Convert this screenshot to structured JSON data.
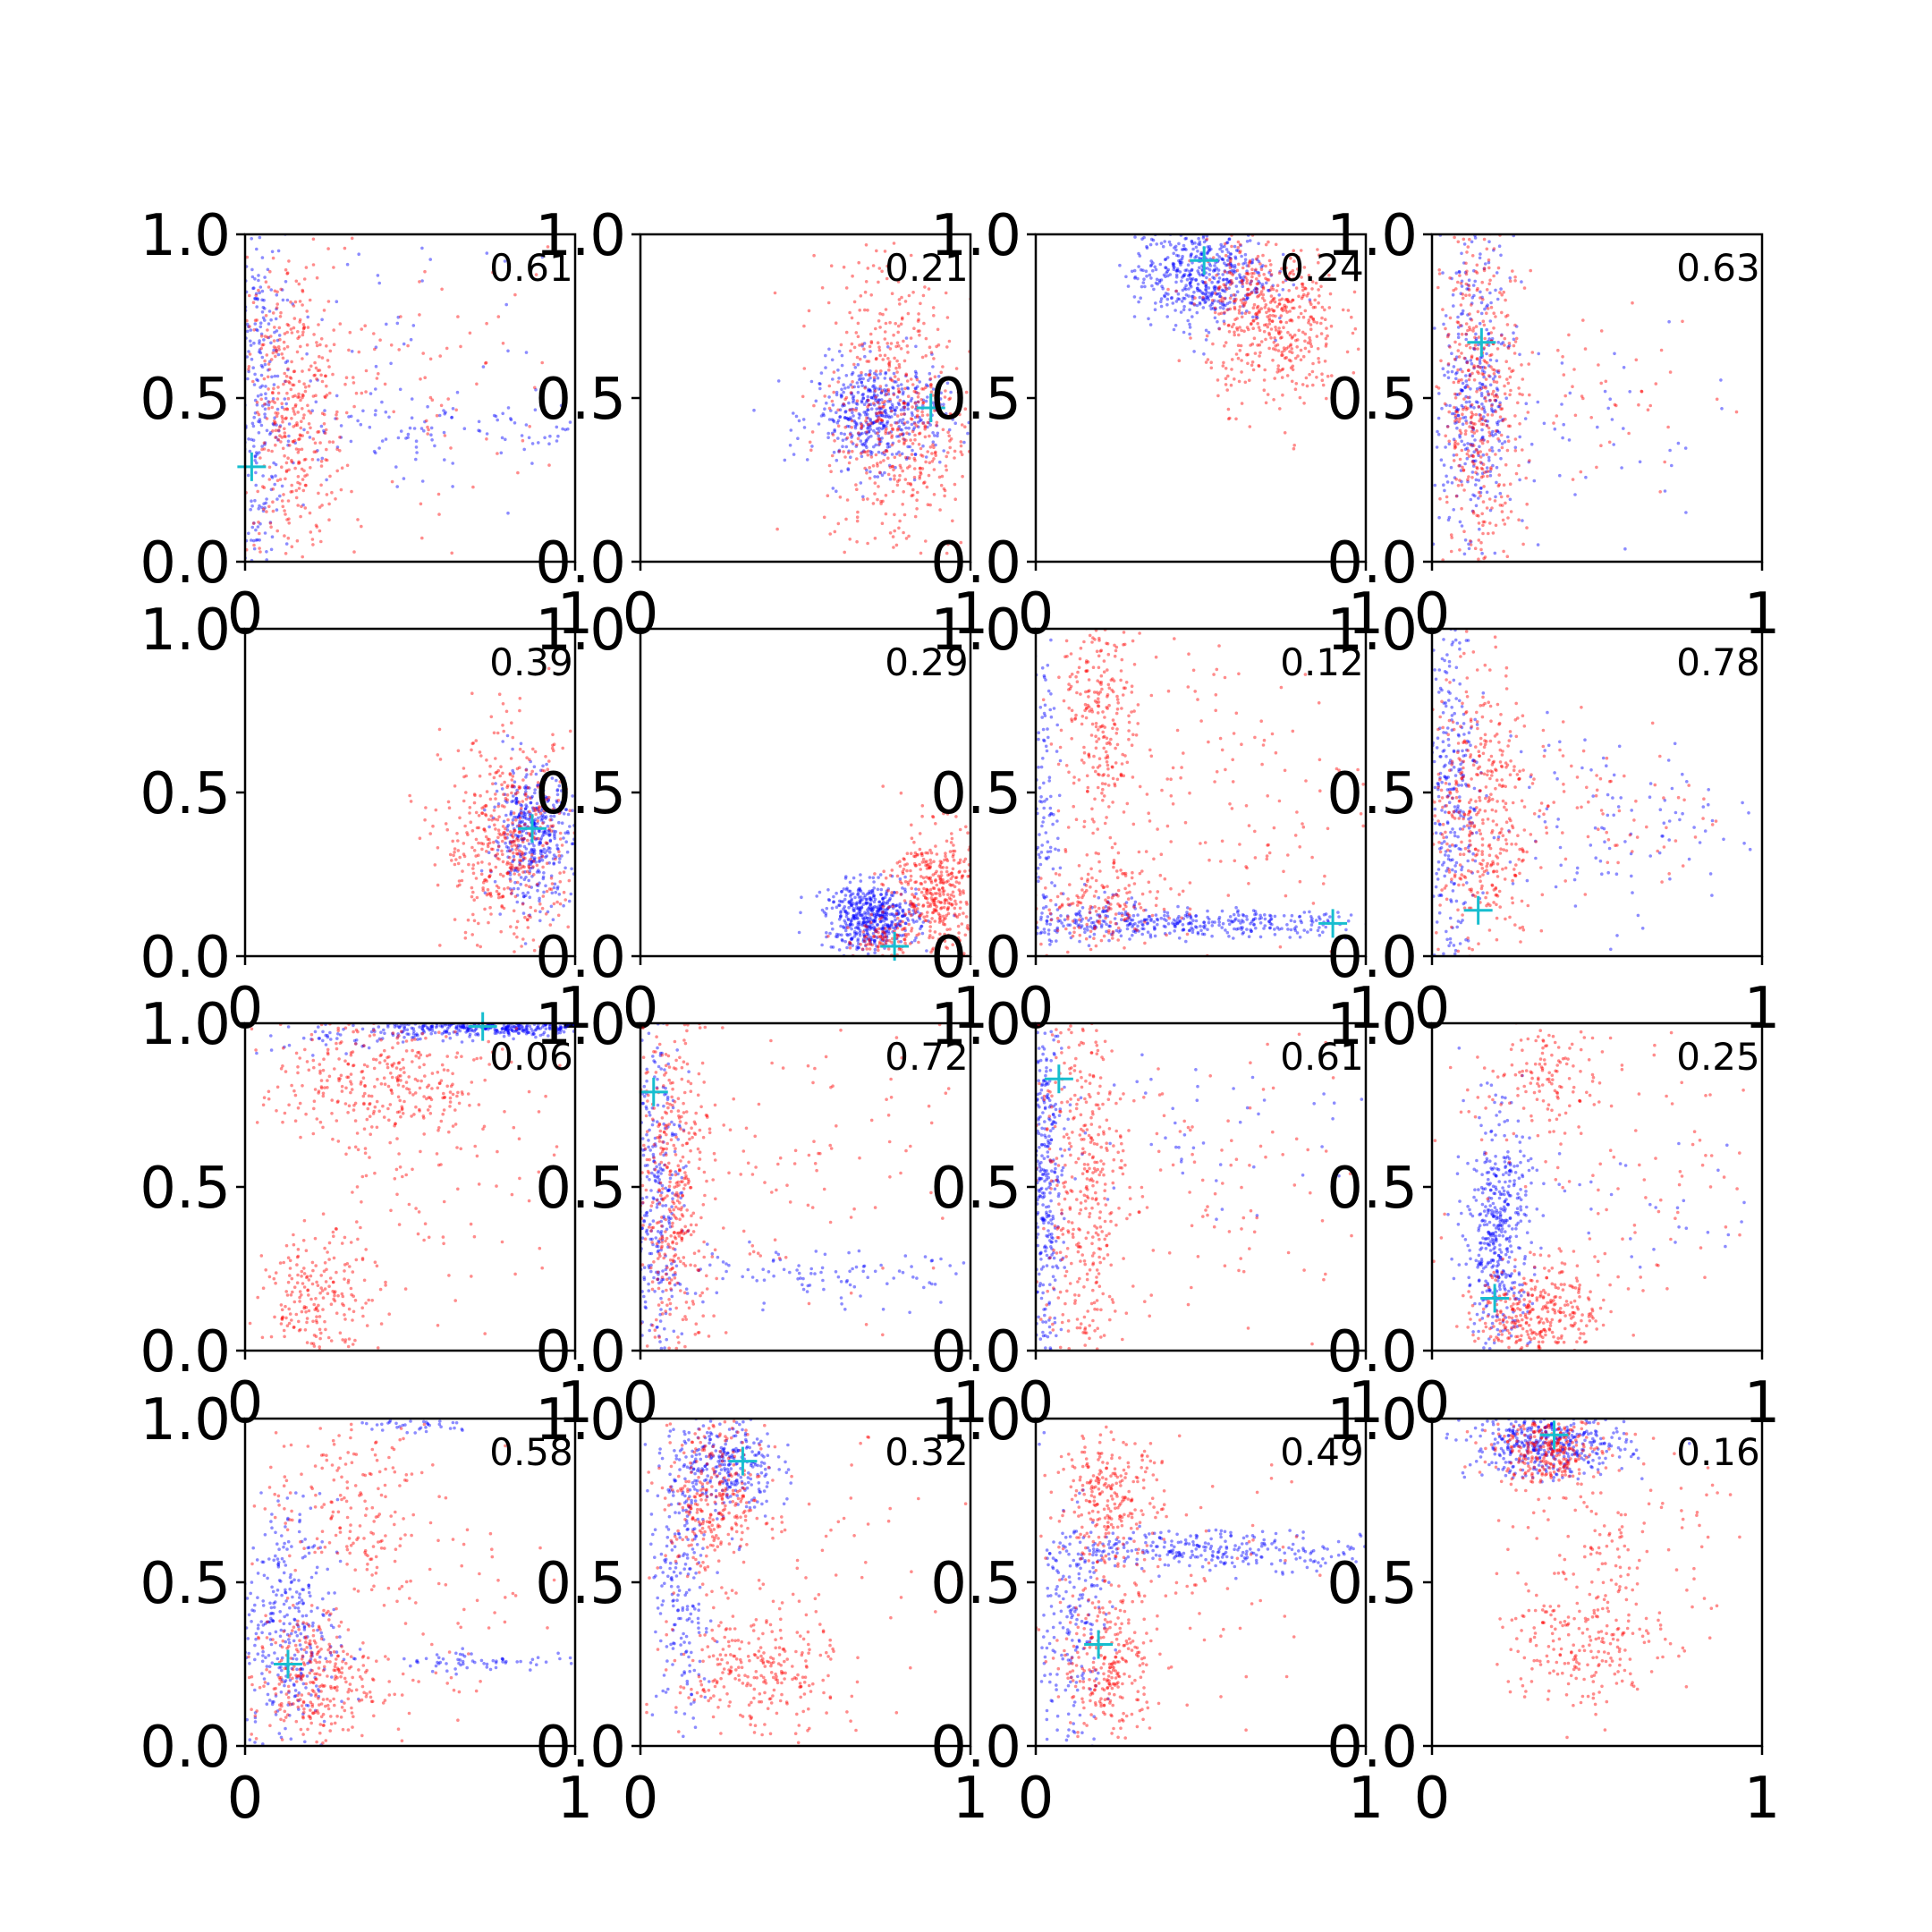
{
  "figure": {
    "colors": {
      "series_a": "#0000ff",
      "series_b": "#ff0000",
      "marker": "#17becf",
      "axis": "#000000"
    },
    "grid": false,
    "rows": 4,
    "cols": 4
  },
  "chart_data": [
    {
      "type": "scatter",
      "annotation": "0.61",
      "xlim": [
        0,
        1
      ],
      "ylim": [
        0,
        1
      ],
      "xticks": [
        "0",
        "1"
      ],
      "yticks": [
        "0.0",
        "0.5",
        "1.0"
      ],
      "marker": {
        "x": 0.02,
        "y": 0.29
      },
      "series": [
        {
          "color": "#0000ff",
          "clusters": [
            {
              "cx": 0.04,
              "cy": 0.5,
              "sx": 0.05,
              "sy": 0.35,
              "n": 320
            },
            {
              "cx": 0.55,
              "cy": 0.4,
              "sx": 0.35,
              "sy": 0.06,
              "n": 110
            },
            {
              "cx": 0.5,
              "cy": 0.6,
              "sx": 0.3,
              "sy": 0.25,
              "n": 60
            }
          ]
        },
        {
          "color": "#ff0000",
          "clusters": [
            {
              "cx": 0.14,
              "cy": 0.45,
              "sx": 0.08,
              "sy": 0.25,
              "n": 420
            },
            {
              "cx": 0.5,
              "cy": 0.55,
              "sx": 0.25,
              "sy": 0.2,
              "n": 90
            }
          ]
        }
      ]
    },
    {
      "type": "scatter",
      "annotation": "0.21",
      "xlim": [
        0,
        1
      ],
      "ylim": [
        0,
        1
      ],
      "xticks": [
        "0",
        "1"
      ],
      "yticks": [
        "0.0",
        "0.5",
        "1.0"
      ],
      "marker": {
        "x": 0.88,
        "y": 0.47
      },
      "series": [
        {
          "color": "#0000ff",
          "clusters": [
            {
              "cx": 0.72,
              "cy": 0.45,
              "sx": 0.1,
              "sy": 0.08,
              "n": 480
            }
          ]
        },
        {
          "color": "#ff0000",
          "clusters": [
            {
              "cx": 0.78,
              "cy": 0.4,
              "sx": 0.11,
              "sy": 0.2,
              "n": 460
            },
            {
              "cx": 0.72,
              "cy": 0.75,
              "sx": 0.08,
              "sy": 0.12,
              "n": 80
            }
          ]
        }
      ]
    },
    {
      "type": "scatter",
      "annotation": "0.24",
      "xlim": [
        0,
        1
      ],
      "ylim": [
        0,
        1
      ],
      "xticks": [
        "0",
        "1"
      ],
      "yticks": [
        "0.0",
        "0.5",
        "1.0"
      ],
      "marker": {
        "x": 0.51,
        "y": 0.92
      },
      "series": [
        {
          "color": "#0000ff",
          "clusters": [
            {
              "cx": 0.5,
              "cy": 0.88,
              "sx": 0.1,
              "sy": 0.08,
              "n": 520
            }
          ]
        },
        {
          "color": "#ff0000",
          "clusters": [
            {
              "cx": 0.72,
              "cy": 0.72,
              "sx": 0.1,
              "sy": 0.12,
              "n": 440
            },
            {
              "cx": 0.62,
              "cy": 0.9,
              "sx": 0.08,
              "sy": 0.06,
              "n": 60
            }
          ]
        }
      ]
    },
    {
      "type": "scatter",
      "annotation": "0.63",
      "xlim": [
        0,
        1
      ],
      "ylim": [
        0,
        1
      ],
      "xticks": [
        "0",
        "1"
      ],
      "yticks": [
        "0.0",
        "0.5",
        "1.0"
      ],
      "marker": {
        "x": 0.15,
        "y": 0.67
      },
      "series": [
        {
          "color": "#0000ff",
          "clusters": [
            {
              "cx": 0.13,
              "cy": 0.5,
              "sx": 0.06,
              "sy": 0.26,
              "n": 380
            },
            {
              "cx": 0.5,
              "cy": 0.4,
              "sx": 0.2,
              "sy": 0.15,
              "n": 40
            }
          ]
        },
        {
          "color": "#ff0000",
          "clusters": [
            {
              "cx": 0.15,
              "cy": 0.5,
              "sx": 0.06,
              "sy": 0.28,
              "n": 440
            },
            {
              "cx": 0.45,
              "cy": 0.5,
              "sx": 0.2,
              "sy": 0.15,
              "n": 60
            }
          ]
        }
      ]
    },
    {
      "type": "scatter",
      "annotation": "0.39",
      "xlim": [
        0,
        1
      ],
      "ylim": [
        0,
        1
      ],
      "xticks": [
        "0",
        "1"
      ],
      "yticks": [
        "0.0",
        "0.5",
        "1.0"
      ],
      "marker": {
        "x": 0.87,
        "y": 0.39
      },
      "series": [
        {
          "color": "#0000ff",
          "clusters": [
            {
              "cx": 0.87,
              "cy": 0.37,
              "sx": 0.06,
              "sy": 0.1,
              "n": 420
            }
          ]
        },
        {
          "color": "#ff0000",
          "clusters": [
            {
              "cx": 0.8,
              "cy": 0.35,
              "sx": 0.1,
              "sy": 0.16,
              "n": 480
            }
          ]
        }
      ]
    },
    {
      "type": "scatter",
      "annotation": "0.29",
      "xlim": [
        0,
        1
      ],
      "ylim": [
        0,
        1
      ],
      "xticks": [
        "0",
        "1"
      ],
      "yticks": [
        "0.0",
        "0.5",
        "1.0"
      ],
      "marker": {
        "x": 0.77,
        "y": 0.03
      },
      "series": [
        {
          "color": "#0000ff",
          "clusters": [
            {
              "cx": 0.7,
              "cy": 0.12,
              "sx": 0.07,
              "sy": 0.05,
              "n": 520
            }
          ]
        },
        {
          "color": "#ff0000",
          "clusters": [
            {
              "cx": 0.9,
              "cy": 0.2,
              "sx": 0.07,
              "sy": 0.1,
              "n": 420
            },
            {
              "cx": 0.72,
              "cy": 0.05,
              "sx": 0.05,
              "sy": 0.03,
              "n": 80
            }
          ]
        }
      ]
    },
    {
      "type": "scatter",
      "annotation": "0.12",
      "xlim": [
        0,
        1
      ],
      "ylim": [
        0,
        1
      ],
      "xticks": [
        "0",
        "1"
      ],
      "yticks": [
        "0.0",
        "0.5",
        "1.0"
      ],
      "marker": {
        "x": 0.9,
        "y": 0.1
      },
      "series": [
        {
          "color": "#0000ff",
          "clusters": [
            {
              "cx": 0.5,
              "cy": 0.1,
              "sx": 0.28,
              "sy": 0.02,
              "n": 320
            },
            {
              "cx": 0.03,
              "cy": 0.45,
              "sx": 0.02,
              "sy": 0.3,
              "n": 120
            },
            {
              "cx": 0.16,
              "cy": 0.12,
              "sx": 0.1,
              "sy": 0.04,
              "n": 100
            }
          ]
        },
        {
          "color": "#ff0000",
          "clusters": [
            {
              "cx": 0.2,
              "cy": 0.75,
              "sx": 0.06,
              "sy": 0.18,
              "n": 260
            },
            {
              "cx": 0.18,
              "cy": 0.15,
              "sx": 0.1,
              "sy": 0.08,
              "n": 180
            },
            {
              "cx": 0.55,
              "cy": 0.5,
              "sx": 0.25,
              "sy": 0.28,
              "n": 160
            }
          ]
        }
      ]
    },
    {
      "type": "scatter",
      "annotation": "0.78",
      "xlim": [
        0,
        1
      ],
      "ylim": [
        0,
        1
      ],
      "xticks": [
        "0",
        "1"
      ],
      "yticks": [
        "0.0",
        "0.5",
        "1.0"
      ],
      "marker": {
        "x": 0.14,
        "y": 0.14
      },
      "series": [
        {
          "color": "#0000ff",
          "clusters": [
            {
              "cx": 0.06,
              "cy": 0.5,
              "sx": 0.04,
              "sy": 0.3,
              "n": 280
            },
            {
              "cx": 0.5,
              "cy": 0.4,
              "sx": 0.25,
              "sy": 0.15,
              "n": 120
            }
          ]
        },
        {
          "color": "#ff0000",
          "clusters": [
            {
              "cx": 0.14,
              "cy": 0.45,
              "sx": 0.08,
              "sy": 0.22,
              "n": 420
            },
            {
              "cx": 0.5,
              "cy": 0.45,
              "sx": 0.22,
              "sy": 0.15,
              "n": 90
            }
          ]
        }
      ]
    },
    {
      "type": "scatter",
      "annotation": "0.06",
      "xlim": [
        0,
        1
      ],
      "ylim": [
        0,
        1
      ],
      "xticks": [
        "0",
        "1"
      ],
      "yticks": [
        "0.0",
        "0.5",
        "1.0"
      ],
      "marker": {
        "x": 0.72,
        "y": 0.99
      },
      "series": [
        {
          "color": "#0000ff",
          "clusters": [
            {
              "cx": 0.75,
              "cy": 0.985,
              "sx": 0.18,
              "sy": 0.012,
              "n": 360
            },
            {
              "cx": 0.35,
              "cy": 0.96,
              "sx": 0.15,
              "sy": 0.03,
              "n": 60
            }
          ]
        },
        {
          "color": "#ff0000",
          "clusters": [
            {
              "cx": 0.4,
              "cy": 0.82,
              "sx": 0.18,
              "sy": 0.12,
              "n": 360
            },
            {
              "cx": 0.22,
              "cy": 0.15,
              "sx": 0.08,
              "sy": 0.1,
              "n": 220
            },
            {
              "cx": 0.6,
              "cy": 0.5,
              "sx": 0.2,
              "sy": 0.2,
              "n": 80
            }
          ]
        }
      ]
    },
    {
      "type": "scatter",
      "annotation": "0.72",
      "xlim": [
        0,
        1
      ],
      "ylim": [
        0,
        1
      ],
      "xticks": [
        "0",
        "1"
      ],
      "yticks": [
        "0.0",
        "0.5",
        "1.0"
      ],
      "marker": {
        "x": 0.04,
        "y": 0.79
      },
      "series": [
        {
          "color": "#0000ff",
          "clusters": [
            {
              "cx": 0.05,
              "cy": 0.45,
              "sx": 0.04,
              "sy": 0.3,
              "n": 320
            },
            {
              "cx": 0.5,
              "cy": 0.22,
              "sx": 0.3,
              "sy": 0.04,
              "n": 110
            }
          ]
        },
        {
          "color": "#ff0000",
          "clusters": [
            {
              "cx": 0.1,
              "cy": 0.5,
              "sx": 0.06,
              "sy": 0.28,
              "n": 420
            },
            {
              "cx": 0.5,
              "cy": 0.55,
              "sx": 0.25,
              "sy": 0.25,
              "n": 110
            }
          ]
        }
      ]
    },
    {
      "type": "scatter",
      "annotation": "0.61",
      "xlim": [
        0,
        1
      ],
      "ylim": [
        0,
        1
      ],
      "xticks": [
        "0",
        "1"
      ],
      "yticks": [
        "0.0",
        "0.5",
        "1.0"
      ],
      "marker": {
        "x": 0.07,
        "y": 0.83
      },
      "series": [
        {
          "color": "#0000ff",
          "clusters": [
            {
              "cx": 0.03,
              "cy": 0.5,
              "sx": 0.025,
              "sy": 0.3,
              "n": 340
            },
            {
              "cx": 0.5,
              "cy": 0.7,
              "sx": 0.3,
              "sy": 0.15,
              "n": 60
            }
          ]
        },
        {
          "color": "#ff0000",
          "clusters": [
            {
              "cx": 0.14,
              "cy": 0.5,
              "sx": 0.07,
              "sy": 0.3,
              "n": 400
            },
            {
              "cx": 0.55,
              "cy": 0.5,
              "sx": 0.25,
              "sy": 0.25,
              "n": 110
            }
          ]
        }
      ]
    },
    {
      "type": "scatter",
      "annotation": "0.25",
      "xlim": [
        0,
        1
      ],
      "ylim": [
        0,
        1
      ],
      "xticks": [
        "0",
        "1"
      ],
      "yticks": [
        "0.0",
        "0.5",
        "1.0"
      ],
      "marker": {
        "x": 0.19,
        "y": 0.16
      },
      "series": [
        {
          "color": "#0000ff",
          "clusters": [
            {
              "cx": 0.2,
              "cy": 0.35,
              "sx": 0.05,
              "sy": 0.18,
              "n": 460
            },
            {
              "cx": 0.6,
              "cy": 0.45,
              "sx": 0.25,
              "sy": 0.1,
              "n": 40
            }
          ]
        },
        {
          "color": "#ff0000",
          "clusters": [
            {
              "cx": 0.32,
              "cy": 0.12,
              "sx": 0.09,
              "sy": 0.07,
              "n": 320
            },
            {
              "cx": 0.35,
              "cy": 0.85,
              "sx": 0.1,
              "sy": 0.08,
              "n": 120
            },
            {
              "cx": 0.55,
              "cy": 0.5,
              "sx": 0.25,
              "sy": 0.25,
              "n": 110
            }
          ]
        }
      ]
    },
    {
      "type": "scatter",
      "annotation": "0.58",
      "xlim": [
        0,
        1
      ],
      "ylim": [
        0,
        1
      ],
      "xticks": [
        "0",
        "1"
      ],
      "yticks": [
        "0.0",
        "0.5",
        "1.0"
      ],
      "marker": {
        "x": 0.13,
        "y": 0.25
      },
      "series": [
        {
          "color": "#0000ff",
          "clusters": [
            {
              "cx": 0.12,
              "cy": 0.35,
              "sx": 0.08,
              "sy": 0.2,
              "n": 360
            },
            {
              "cx": 0.75,
              "cy": 0.26,
              "sx": 0.18,
              "sy": 0.015,
              "n": 70
            },
            {
              "cx": 0.5,
              "cy": 0.98,
              "sx": 0.1,
              "sy": 0.015,
              "n": 40
            }
          ]
        },
        {
          "color": "#ff0000",
          "clusters": [
            {
              "cx": 0.2,
              "cy": 0.2,
              "sx": 0.09,
              "sy": 0.1,
              "n": 300
            },
            {
              "cx": 0.3,
              "cy": 0.75,
              "sx": 0.12,
              "sy": 0.15,
              "n": 170
            },
            {
              "cx": 0.55,
              "cy": 0.5,
              "sx": 0.22,
              "sy": 0.25,
              "n": 100
            }
          ]
        }
      ]
    },
    {
      "type": "scatter",
      "annotation": "0.32",
      "xlim": [
        0,
        1
      ],
      "ylim": [
        0,
        1
      ],
      "xticks": [
        "0",
        "1"
      ],
      "yticks": [
        "0.0",
        "0.5",
        "1.0"
      ],
      "marker": {
        "x": 0.31,
        "y": 0.87
      },
      "series": [
        {
          "color": "#0000ff",
          "clusters": [
            {
              "cx": 0.25,
              "cy": 0.85,
              "sx": 0.08,
              "sy": 0.08,
              "n": 320
            },
            {
              "cx": 0.12,
              "cy": 0.45,
              "sx": 0.05,
              "sy": 0.2,
              "n": 180
            }
          ]
        },
        {
          "color": "#ff0000",
          "clusters": [
            {
              "cx": 0.22,
              "cy": 0.75,
              "sx": 0.08,
              "sy": 0.12,
              "n": 300
            },
            {
              "cx": 0.35,
              "cy": 0.22,
              "sx": 0.12,
              "sy": 0.1,
              "n": 260
            },
            {
              "cx": 0.55,
              "cy": 0.5,
              "sx": 0.2,
              "sy": 0.2,
              "n": 60
            }
          ]
        }
      ]
    },
    {
      "type": "scatter",
      "annotation": "0.49",
      "xlim": [
        0,
        1
      ],
      "ylim": [
        0,
        1
      ],
      "xticks": [
        "0",
        "1"
      ],
      "yticks": [
        "0.0",
        "0.5",
        "1.0"
      ],
      "marker": {
        "x": 0.19,
        "y": 0.31
      },
      "series": [
        {
          "color": "#0000ff",
          "clusters": [
            {
              "cx": 0.55,
              "cy": 0.6,
              "sx": 0.28,
              "sy": 0.03,
              "n": 300
            },
            {
              "cx": 0.1,
              "cy": 0.35,
              "sx": 0.06,
              "sy": 0.2,
              "n": 200
            }
          ]
        },
        {
          "color": "#ff0000",
          "clusters": [
            {
              "cx": 0.22,
              "cy": 0.75,
              "sx": 0.08,
              "sy": 0.1,
              "n": 260
            },
            {
              "cx": 0.22,
              "cy": 0.25,
              "sx": 0.07,
              "sy": 0.12,
              "n": 260
            },
            {
              "cx": 0.45,
              "cy": 0.45,
              "sx": 0.2,
              "sy": 0.2,
              "n": 80
            }
          ]
        }
      ]
    },
    {
      "type": "scatter",
      "annotation": "0.16",
      "xlim": [
        0,
        1
      ],
      "ylim": [
        0,
        1
      ],
      "xticks": [
        "0",
        "1"
      ],
      "yticks": [
        "0.0",
        "0.5",
        "1.0"
      ],
      "marker": {
        "x": 0.37,
        "y": 0.95
      },
      "series": [
        {
          "color": "#0000ff",
          "clusters": [
            {
              "cx": 0.35,
              "cy": 0.92,
              "sx": 0.12,
              "sy": 0.05,
              "n": 420
            }
          ]
        },
        {
          "color": "#ff0000",
          "clusters": [
            {
              "cx": 0.35,
              "cy": 0.9,
              "sx": 0.08,
              "sy": 0.05,
              "n": 280
            },
            {
              "cx": 0.45,
              "cy": 0.3,
              "sx": 0.12,
              "sy": 0.1,
              "n": 200
            },
            {
              "cx": 0.55,
              "cy": 0.6,
              "sx": 0.15,
              "sy": 0.15,
              "n": 140
            }
          ]
        }
      ]
    }
  ]
}
